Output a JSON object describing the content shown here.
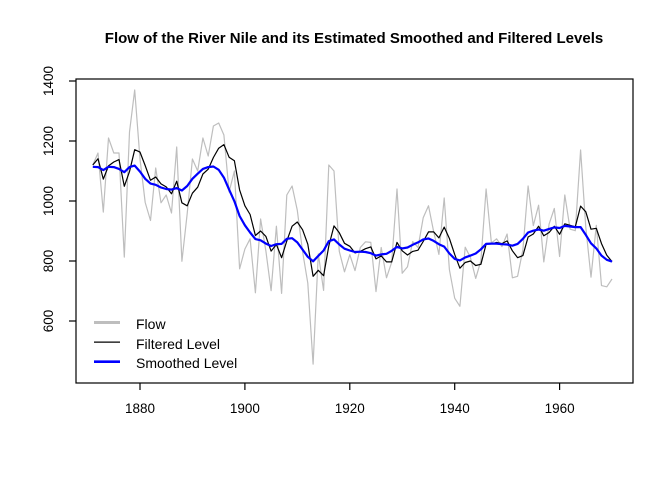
{
  "title": "Flow of the River Nile and its Estimated Smoothed and Filtered Levels",
  "chart_data": {
    "type": "line",
    "title": "Flow of the River Nile and its Estimated Smoothed and Filtered Levels",
    "xlabel": "",
    "ylabel": "",
    "grid": false,
    "legend_position": "bottomleft",
    "x_start_year": 1871,
    "x_end_year": 1970,
    "x_range": [
      1867.8,
      1974.0
    ],
    "y_range": [
      393.3,
      1406.7
    ],
    "x_ticks": [
      1880,
      1900,
      1920,
      1940,
      1960
    ],
    "y_ticks": [
      600,
      800,
      1000,
      1200,
      1400
    ],
    "series": [
      {
        "name": "Flow",
        "color": "#bebebe",
        "line_width": 1.2,
        "values": [
          1120,
          1160,
          963,
          1210,
          1160,
          1160,
          813,
          1230,
          1370,
          1140,
          995,
          935,
          1110,
          994,
          1020,
          960,
          1180,
          799,
          958,
          1140,
          1100,
          1210,
          1150,
          1250,
          1260,
          1220,
          1030,
          1100,
          774,
          840,
          874,
          694,
          940,
          833,
          701,
          916,
          692,
          1020,
          1050,
          969,
          831,
          726,
          456,
          824,
          702,
          1120,
          1100,
          832,
          764,
          821,
          768,
          845,
          864,
          862,
          698,
          845,
          744,
          796,
          1040,
          759,
          781,
          865,
          845,
          944,
          984,
          897,
          822,
          1010,
          771,
          676,
          649,
          846,
          812,
          742,
          801,
          1040,
          860,
          874,
          848,
          890,
          744,
          749,
          838,
          1050,
          918,
          986,
          797,
          923,
          975,
          815,
          1020,
          906,
          901,
          1170,
          912,
          746,
          919,
          718,
          714,
          740
        ]
      },
      {
        "name": "Filtered Level",
        "color": "#000000",
        "line_width": 1.2,
        "values": [
          1120,
          1141,
          1073,
          1117,
          1130,
          1138,
          1049,
          1098,
          1171,
          1163,
          1118,
          1069,
          1080,
          1057,
          1047,
          1024,
          1066,
          994,
          984,
          1026,
          1046,
          1090,
          1106,
          1145,
          1176,
          1188,
          1146,
          1134,
          1037,
          984,
          955,
          885,
          900,
          882,
          833,
          855,
          811,
          867,
          916,
          930,
          904,
          856,
          749,
          769,
          751,
          850,
          917,
          894,
          859,
          849,
          827,
          832,
          841,
          847,
          807,
          817,
          797,
          797,
          862,
          834,
          820,
          832,
          836,
          865,
          897,
          897,
          877,
          913,
          875,
          822,
          776,
          795,
          800,
          785,
          789,
          856,
          857,
          862,
          858,
          867,
          834,
          811,
          818,
          880,
          890,
          916,
          884,
          895,
          916,
          889,
          924,
          919,
          914,
          983,
          964,
          906,
          909,
          858,
          819,
          798
        ]
      },
      {
        "name": "Smoothed Level",
        "color": "#0000ff",
        "line_width": 2.2,
        "values": [
          1114,
          1113,
          1103,
          1114,
          1113,
          1107,
          1096,
          1113,
          1118,
          1098,
          1074,
          1058,
          1054,
          1045,
          1040,
          1038,
          1043,
          1035,
          1050,
          1074,
          1091,
          1107,
          1113,
          1115,
          1104,
          1078,
          1038,
          999,
          950,
          919,
          895,
          873,
          869,
          858,
          850,
          856,
          857,
          874,
          876,
          862,
          838,
          814,
          799,
          817,
          835,
          866,
          872,
          855,
          841,
          835,
          830,
          831,
          830,
          826,
          818,
          822,
          824,
          834,
          847,
          842,
          845,
          854,
          862,
          872,
          875,
          867,
          856,
          848,
          825,
          807,
          802,
          812,
          818,
          825,
          839,
          857,
          858,
          858,
          856,
          855,
          851,
          857,
          874,
          895,
          901,
          905,
          901,
          907,
          912,
          910,
          917,
          915,
          913,
          913,
          887,
          859,
          842,
          818,
          804,
          798
        ]
      }
    ]
  },
  "legend": {
    "items": [
      {
        "label": "Flow",
        "color": "#bebebe",
        "line_width": 3
      },
      {
        "label": "Filtered Level",
        "color": "#000000",
        "line_width": 1.2
      },
      {
        "label": "Smoothed Level",
        "color": "#0000ff",
        "line_width": 2.6
      }
    ]
  }
}
